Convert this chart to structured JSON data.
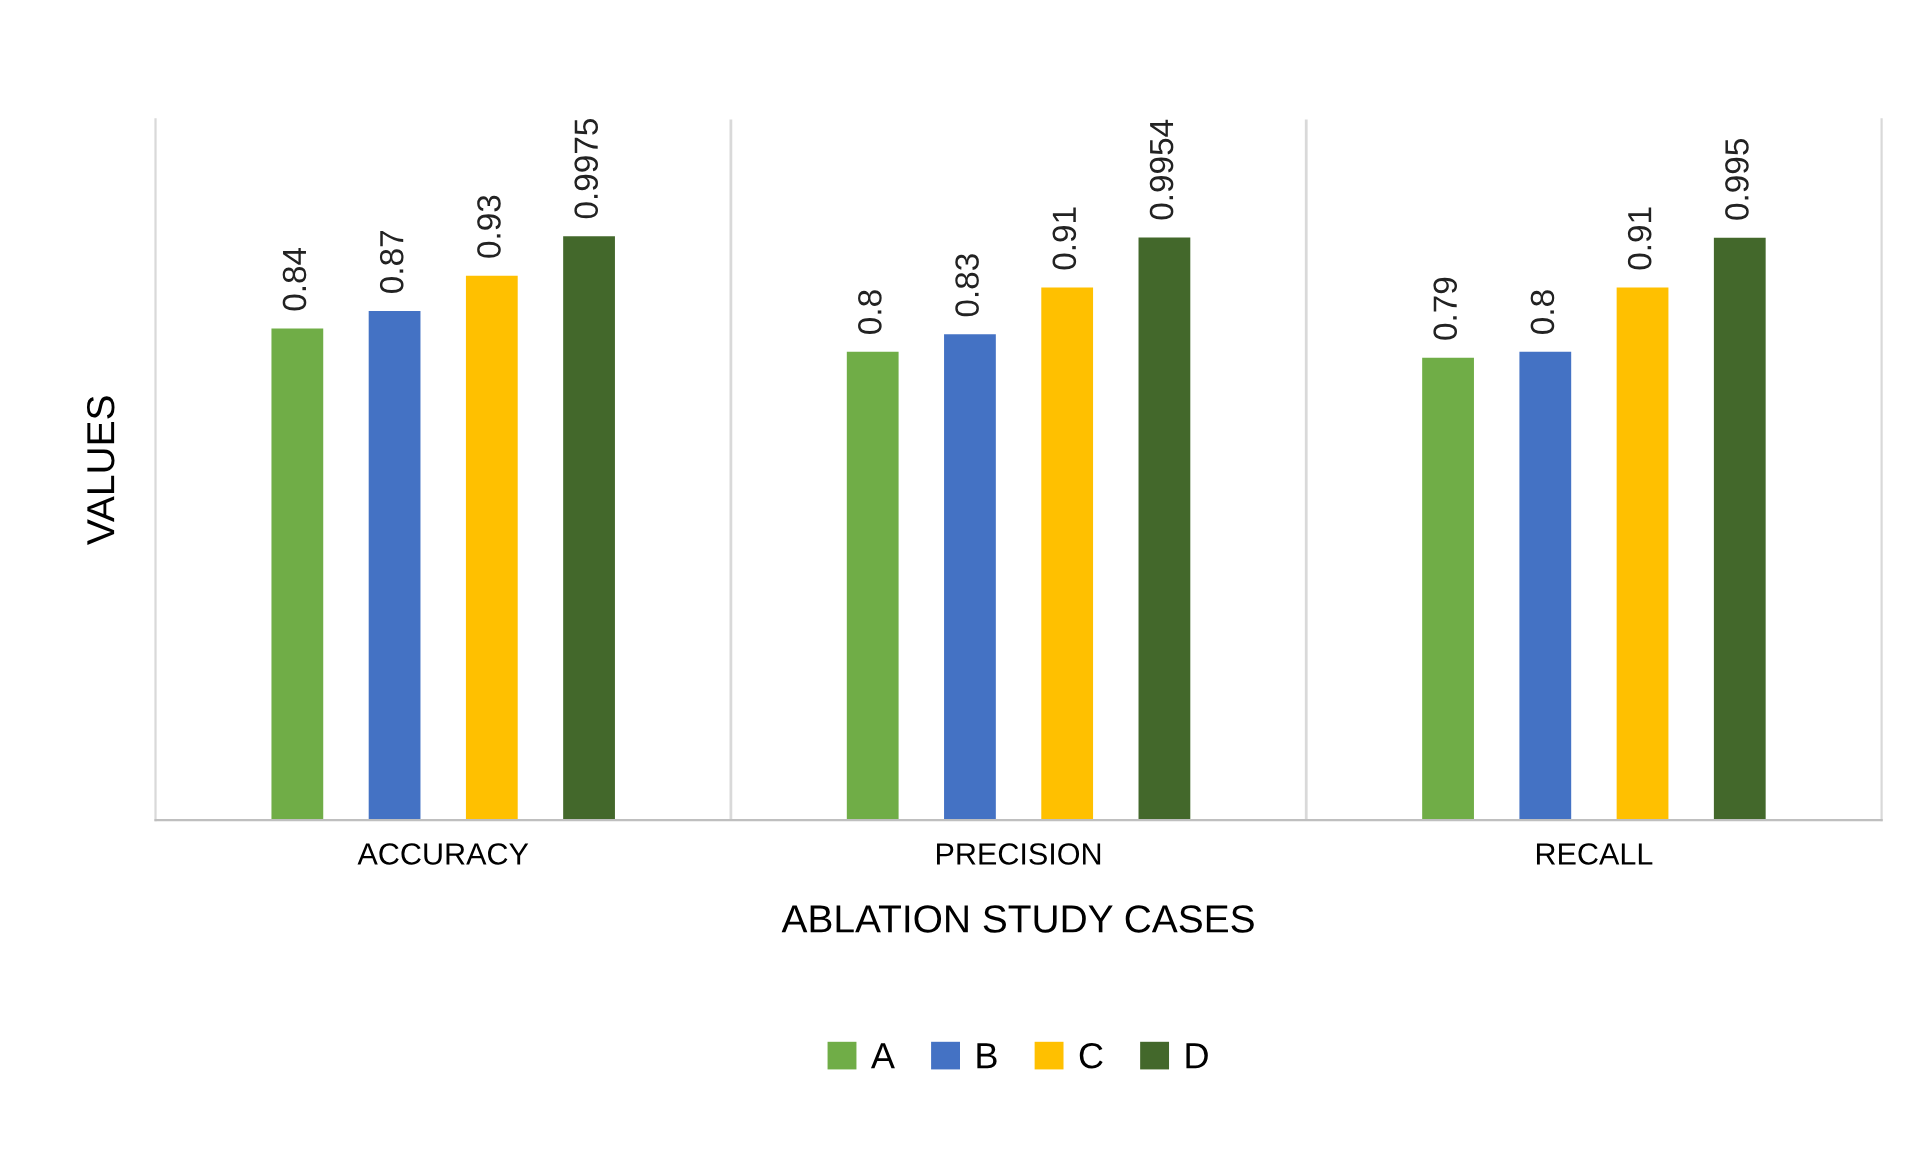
{
  "chart_data": {
    "type": "bar",
    "xlabel": "ABLATION STUDY CASES",
    "ylabel": "VALUES",
    "categories": [
      "ACCURACY",
      "PRECISION",
      "RECALL"
    ],
    "series": [
      {
        "name": "A",
        "color": "#70ad47",
        "values": [
          0.84,
          0.8,
          0.79
        ]
      },
      {
        "name": "B",
        "color": "#4472c4",
        "values": [
          0.87,
          0.83,
          0.8
        ]
      },
      {
        "name": "C",
        "color": "#ffc000",
        "values": [
          0.93,
          0.91,
          0.91
        ]
      },
      {
        "name": "D",
        "color": "#43682b",
        "values": [
          0.9975,
          0.9954,
          0.995
        ]
      }
    ],
    "data_labels": true,
    "grid": "x",
    "legend": "bottom"
  }
}
